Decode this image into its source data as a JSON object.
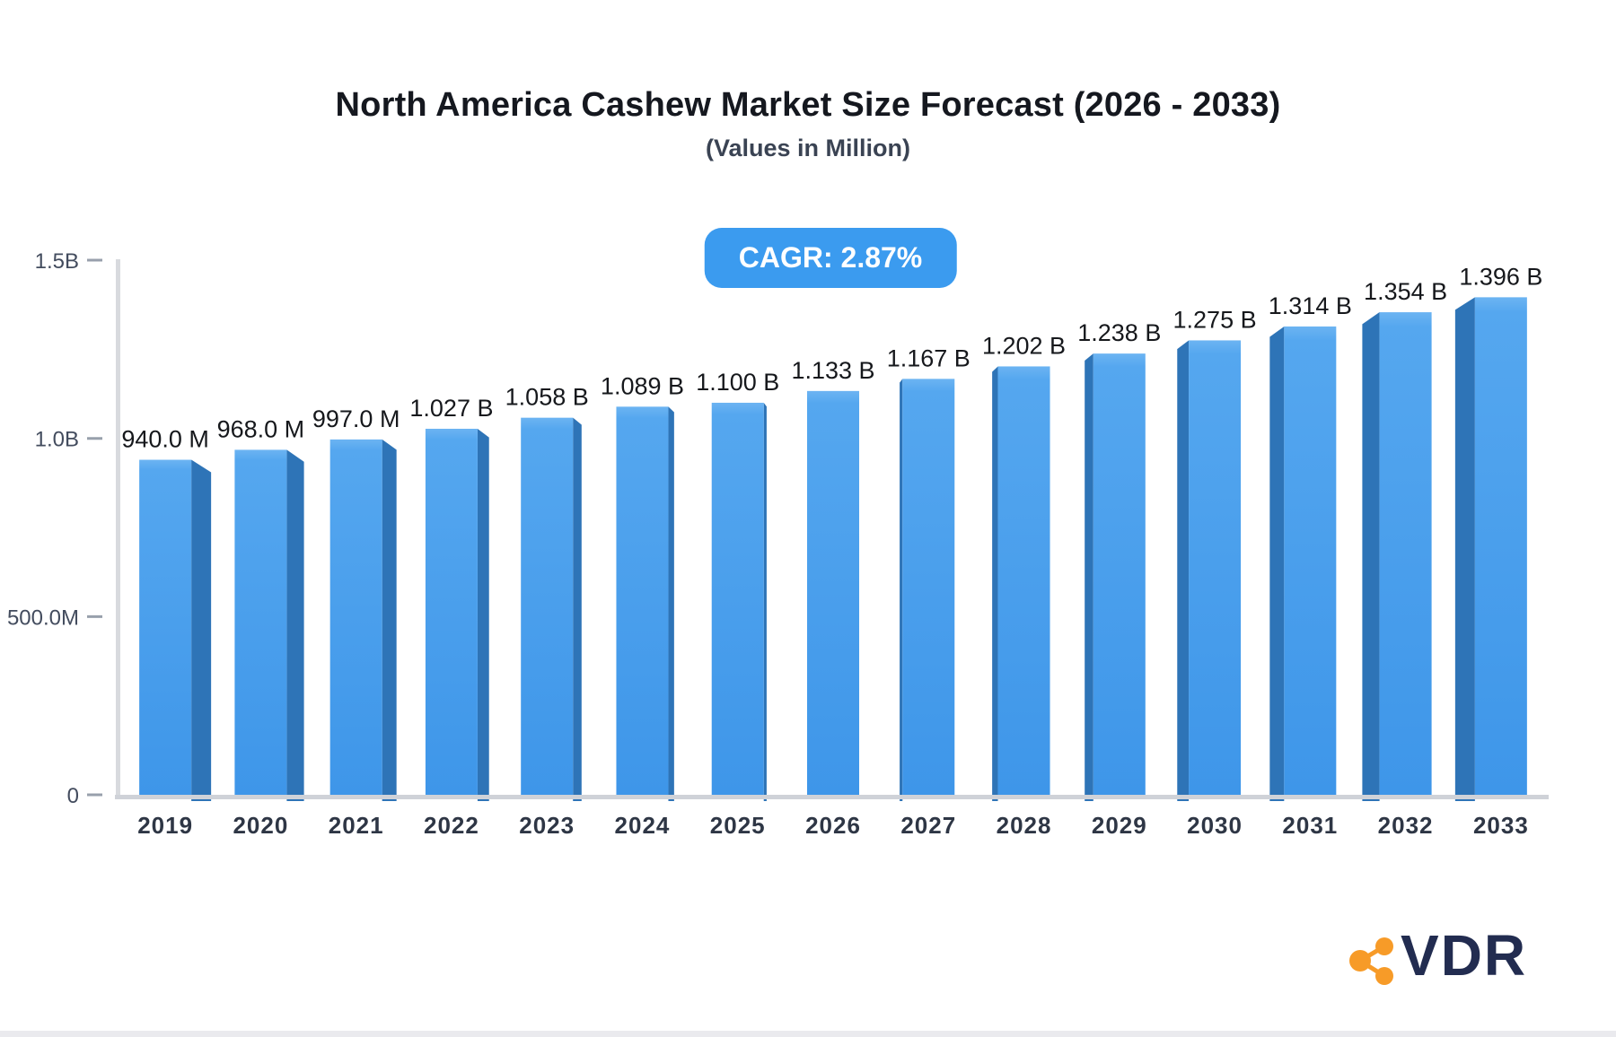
{
  "header": {
    "title": "North America Cashew Market Size Forecast (2026 - 2033)",
    "subtitle": "(Values in Million)"
  },
  "badge": {
    "label": "CAGR: 2.87%"
  },
  "chart_data": {
    "type": "bar",
    "title": "North America Cashew Market Size Forecast (2026 - 2033)",
    "subtitle": "(Values in Million)",
    "cagr_label": "CAGR: 2.87%",
    "categories": [
      "2019",
      "2020",
      "2021",
      "2022",
      "2023",
      "2024",
      "2025",
      "2026",
      "2027",
      "2028",
      "2029",
      "2030",
      "2031",
      "2032",
      "2033"
    ],
    "values": [
      0.94,
      0.968,
      0.997,
      1.027,
      1.058,
      1.089,
      1.1,
      1.133,
      1.167,
      1.202,
      1.238,
      1.275,
      1.314,
      1.354,
      1.396
    ],
    "value_labels": [
      "940.0 M",
      "968.0 M",
      "997.0 M",
      "1.027 B",
      "1.058 B",
      "1.089 B",
      "1.100 B",
      "1.133 B",
      "1.167 B",
      "1.202 B",
      "1.238 B",
      "1.275 B",
      "1.314 B",
      "1.354 B",
      "1.396 B"
    ],
    "ylim": [
      0,
      1.5
    ],
    "yticks": [
      {
        "label": "1.5B",
        "value": 1.5
      },
      {
        "label": "1.0B",
        "value": 1.0
      },
      {
        "label": "500.0M",
        "value": 0.5
      },
      {
        "label": "0",
        "value": 0
      }
    ],
    "xlabel": "",
    "ylabel": "",
    "grid": false,
    "legend": false,
    "style": "3d-perspective-columns",
    "colors": {
      "bar_front_top": "#6cb4f2",
      "bar_front_mid": "#55a7ef",
      "bar_front_bottom": "#3e96e9",
      "bar_side": "#2e74b7",
      "axis_line": "#d8dade",
      "baseline": "#cfd2d8",
      "tick_dash": "#98a0ac",
      "tick_text": "#434c5e",
      "year_text": "#2e3645",
      "value_text": "#16181c",
      "badge_bg": "#3b9bef",
      "badge_text": "#ffffff"
    }
  },
  "logo": {
    "text": "VDR",
    "icon": "share-network-icon",
    "icon_color": "#f79b28",
    "text_color": "#222c50"
  }
}
